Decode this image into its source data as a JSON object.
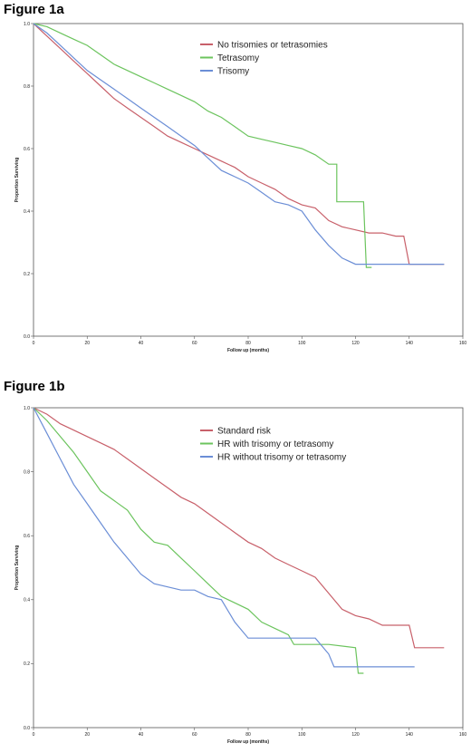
{
  "chart_data": [
    {
      "type": "line",
      "figure_label": "Figure 1a",
      "xlabel": "Follow up (months)",
      "ylabel": "Proportion Surviving",
      "xlim": [
        0,
        160
      ],
      "ylim": [
        0,
        1
      ],
      "xticks": [
        0,
        20,
        40,
        60,
        80,
        100,
        120,
        140,
        160
      ],
      "yticks": [
        0.0,
        0.2,
        0.4,
        0.6,
        0.8,
        1.0
      ],
      "xtick_labels": [
        "0",
        "20",
        "40",
        "60",
        "80",
        "100",
        "120",
        "140",
        "160"
      ],
      "ytick_labels": [
        "0.0",
        "0.2",
        "0.4",
        "0.6",
        "0.8",
        "1.0"
      ],
      "grid": false,
      "legend_position": "top-right",
      "series": [
        {
          "name": "No trisomies or tetrasomies",
          "color": "#c8606a",
          "points": [
            [
              0,
              1.0
            ],
            [
              5,
              0.96
            ],
            [
              10,
              0.92
            ],
            [
              15,
              0.88
            ],
            [
              20,
              0.84
            ],
            [
              25,
              0.8
            ],
            [
              30,
              0.76
            ],
            [
              35,
              0.73
            ],
            [
              40,
              0.7
            ],
            [
              45,
              0.67
            ],
            [
              50,
              0.64
            ],
            [
              55,
              0.62
            ],
            [
              60,
              0.6
            ],
            [
              65,
              0.58
            ],
            [
              70,
              0.56
            ],
            [
              75,
              0.54
            ],
            [
              80,
              0.51
            ],
            [
              85,
              0.49
            ],
            [
              90,
              0.47
            ],
            [
              95,
              0.44
            ],
            [
              100,
              0.42
            ],
            [
              105,
              0.41
            ],
            [
              110,
              0.37
            ],
            [
              115,
              0.35
            ],
            [
              120,
              0.34
            ],
            [
              125,
              0.33
            ],
            [
              130,
              0.33
            ],
            [
              135,
              0.32
            ],
            [
              138,
              0.32
            ],
            [
              140,
              0.23
            ],
            [
              153,
              0.23
            ]
          ]
        },
        {
          "name": "Tetrasomy",
          "color": "#6cc45e",
          "points": [
            [
              0,
              1.0
            ],
            [
              5,
              0.99
            ],
            [
              10,
              0.97
            ],
            [
              15,
              0.95
            ],
            [
              20,
              0.93
            ],
            [
              25,
              0.9
            ],
            [
              30,
              0.87
            ],
            [
              35,
              0.85
            ],
            [
              40,
              0.83
            ],
            [
              45,
              0.81
            ],
            [
              50,
              0.79
            ],
            [
              55,
              0.77
            ],
            [
              60,
              0.75
            ],
            [
              65,
              0.72
            ],
            [
              70,
              0.7
            ],
            [
              75,
              0.67
            ],
            [
              80,
              0.64
            ],
            [
              85,
              0.63
            ],
            [
              90,
              0.62
            ],
            [
              95,
              0.61
            ],
            [
              100,
              0.6
            ],
            [
              105,
              0.58
            ],
            [
              110,
              0.55
            ],
            [
              113,
              0.55
            ],
            [
              113,
              0.43
            ],
            [
              120,
              0.43
            ],
            [
              123,
              0.43
            ],
            [
              124,
              0.22
            ],
            [
              126,
              0.22
            ]
          ]
        },
        {
          "name": "Trisomy",
          "color": "#6b8ed6",
          "points": [
            [
              0,
              1.0
            ],
            [
              5,
              0.97
            ],
            [
              10,
              0.93
            ],
            [
              15,
              0.89
            ],
            [
              20,
              0.85
            ],
            [
              25,
              0.82
            ],
            [
              30,
              0.79
            ],
            [
              35,
              0.76
            ],
            [
              40,
              0.73
            ],
            [
              45,
              0.7
            ],
            [
              50,
              0.67
            ],
            [
              55,
              0.64
            ],
            [
              60,
              0.61
            ],
            [
              65,
              0.57
            ],
            [
              70,
              0.53
            ],
            [
              75,
              0.51
            ],
            [
              80,
              0.49
            ],
            [
              85,
              0.46
            ],
            [
              90,
              0.43
            ],
            [
              95,
              0.42
            ],
            [
              100,
              0.4
            ],
            [
              105,
              0.34
            ],
            [
              110,
              0.29
            ],
            [
              115,
              0.25
            ],
            [
              120,
              0.23
            ],
            [
              125,
              0.23
            ],
            [
              130,
              0.23
            ],
            [
              140,
              0.23
            ],
            [
              153,
              0.23
            ]
          ]
        }
      ]
    },
    {
      "type": "line",
      "figure_label": "Figure 1b",
      "xlabel": "Follow up (months)",
      "ylabel": "Proportion Surviving",
      "xlim": [
        0,
        160
      ],
      "ylim": [
        0,
        1
      ],
      "xticks": [
        0,
        20,
        40,
        60,
        80,
        100,
        120,
        140,
        160
      ],
      "yticks": [
        0.0,
        0.2,
        0.4,
        0.6,
        0.8,
        1.0
      ],
      "xtick_labels": [
        "0",
        "20",
        "40",
        "60",
        "80",
        "100",
        "120",
        "140",
        "160"
      ],
      "ytick_labels": [
        "0.0",
        "0.2",
        "0.4",
        "0.6",
        "0.8",
        "1.0"
      ],
      "grid": false,
      "legend_position": "top-right",
      "series": [
        {
          "name": "Standard risk",
          "color": "#c8606a",
          "points": [
            [
              0,
              1.0
            ],
            [
              5,
              0.98
            ],
            [
              10,
              0.95
            ],
            [
              15,
              0.93
            ],
            [
              20,
              0.91
            ],
            [
              25,
              0.89
            ],
            [
              30,
              0.87
            ],
            [
              35,
              0.84
            ],
            [
              40,
              0.81
            ],
            [
              45,
              0.78
            ],
            [
              50,
              0.75
            ],
            [
              55,
              0.72
            ],
            [
              60,
              0.7
            ],
            [
              65,
              0.67
            ],
            [
              70,
              0.64
            ],
            [
              75,
              0.61
            ],
            [
              80,
              0.58
            ],
            [
              85,
              0.56
            ],
            [
              90,
              0.53
            ],
            [
              95,
              0.51
            ],
            [
              100,
              0.49
            ],
            [
              105,
              0.47
            ],
            [
              110,
              0.42
            ],
            [
              115,
              0.37
            ],
            [
              120,
              0.35
            ],
            [
              125,
              0.34
            ],
            [
              130,
              0.32
            ],
            [
              135,
              0.32
            ],
            [
              140,
              0.32
            ],
            [
              142,
              0.25
            ],
            [
              153,
              0.25
            ]
          ]
        },
        {
          "name": "HR with trisomy or tetrasomy",
          "color": "#6cc45e",
          "points": [
            [
              0,
              1.0
            ],
            [
              5,
              0.96
            ],
            [
              10,
              0.91
            ],
            [
              15,
              0.86
            ],
            [
              20,
              0.8
            ],
            [
              25,
              0.74
            ],
            [
              30,
              0.71
            ],
            [
              35,
              0.68
            ],
            [
              40,
              0.62
            ],
            [
              45,
              0.58
            ],
            [
              50,
              0.57
            ],
            [
              55,
              0.53
            ],
            [
              60,
              0.49
            ],
            [
              65,
              0.45
            ],
            [
              70,
              0.41
            ],
            [
              75,
              0.39
            ],
            [
              80,
              0.37
            ],
            [
              85,
              0.33
            ],
            [
              90,
              0.31
            ],
            [
              95,
              0.29
            ],
            [
              97,
              0.26
            ],
            [
              110,
              0.26
            ],
            [
              120,
              0.25
            ],
            [
              121,
              0.17
            ],
            [
              123,
              0.17
            ]
          ]
        },
        {
          "name": "HR without trisomy or tetrasomy",
          "color": "#6b8ed6",
          "points": [
            [
              0,
              1.0
            ],
            [
              5,
              0.92
            ],
            [
              10,
              0.84
            ],
            [
              15,
              0.76
            ],
            [
              20,
              0.7
            ],
            [
              25,
              0.64
            ],
            [
              30,
              0.58
            ],
            [
              35,
              0.53
            ],
            [
              40,
              0.48
            ],
            [
              45,
              0.45
            ],
            [
              50,
              0.44
            ],
            [
              55,
              0.43
            ],
            [
              60,
              0.43
            ],
            [
              65,
              0.41
            ],
            [
              70,
              0.4
            ],
            [
              75,
              0.33
            ],
            [
              80,
              0.28
            ],
            [
              90,
              0.28
            ],
            [
              100,
              0.28
            ],
            [
              105,
              0.28
            ],
            [
              110,
              0.23
            ],
            [
              112,
              0.19
            ],
            [
              125,
              0.19
            ],
            [
              142,
              0.19
            ]
          ]
        }
      ]
    }
  ]
}
